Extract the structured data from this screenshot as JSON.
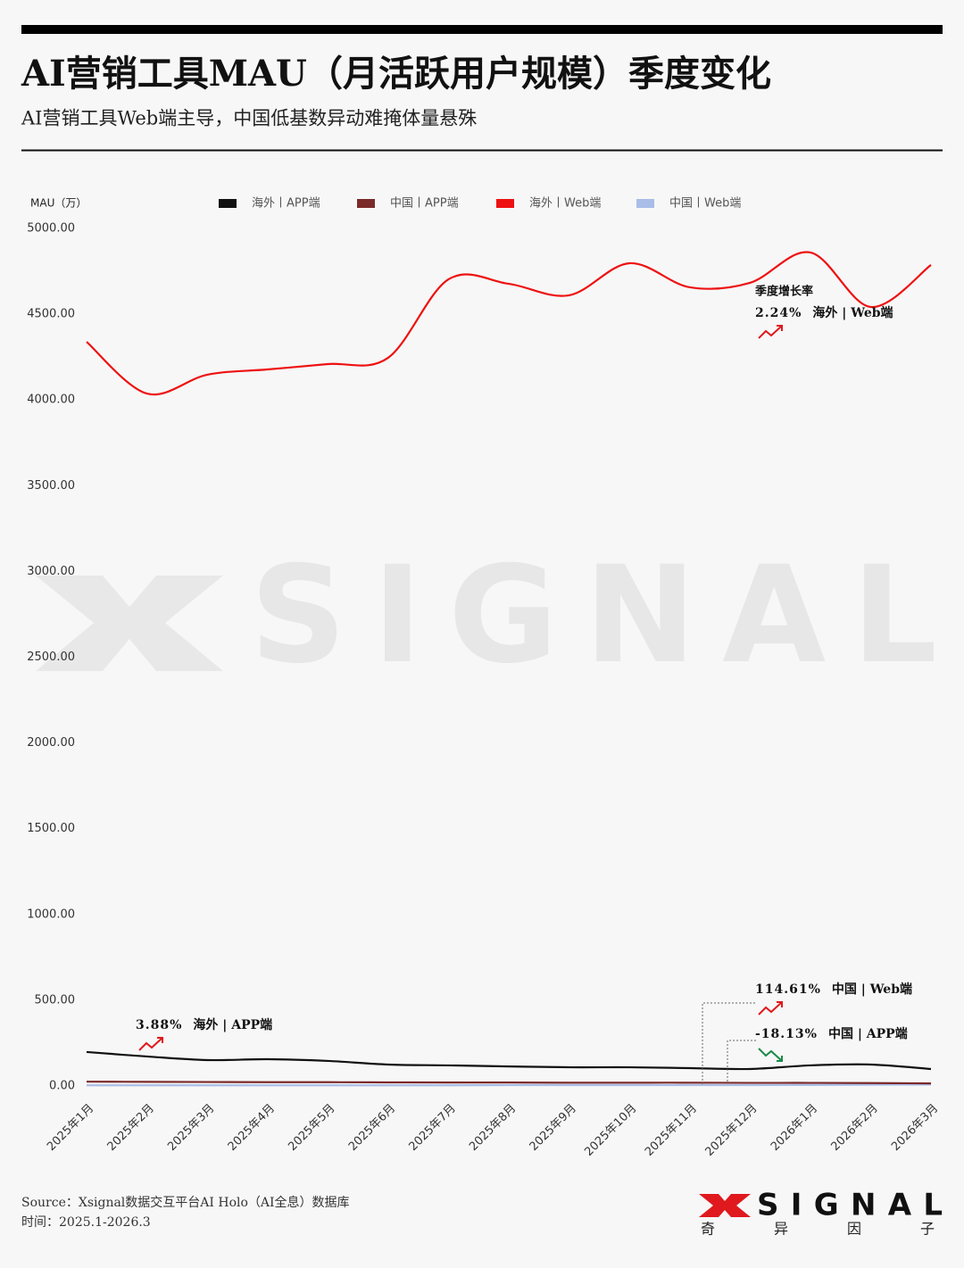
{
  "header": {
    "title": "AI营销工具MAU（月活跃用户规模）季度变化",
    "subtitle": "AI营销工具Web端主导，中国低基数异动难掩体量悬殊"
  },
  "chart_data": {
    "type": "line",
    "y_label": "MAU（万）",
    "categories": [
      "2025年1月",
      "2025年2月",
      "2025年3月",
      "2025年4月",
      "2025年5月",
      "2025年6月",
      "2025年7月",
      "2025年8月",
      "2025年9月",
      "2025年10月",
      "2025年11月",
      "2025年12月",
      "2026年1月",
      "2026年2月",
      "2026年3月"
    ],
    "series": [
      {
        "name": "海外丨APP端",
        "color": "#111111",
        "values": [
          198,
          172,
          151,
          156,
          146,
          125,
          120,
          114,
          109,
          109,
          104,
          99,
          120,
          125,
          99
        ]
      },
      {
        "name": "中国丨APP端",
        "color": "#7b2a2a",
        "values": [
          25,
          24,
          23,
          22,
          22,
          21,
          20,
          20,
          19,
          19,
          19,
          18,
          18,
          17,
          15
        ]
      },
      {
        "name": "海外丨Web端",
        "color": "#ee1111",
        "values": [
          4339,
          4037,
          4147,
          4178,
          4209,
          4246,
          4703,
          4677,
          4610,
          4797,
          4657,
          4683,
          4860,
          4542,
          4787
        ]
      },
      {
        "name": "中国丨Web端",
        "color": "#a9bde8",
        "values": [
          4,
          4,
          4,
          4,
          4,
          4,
          4,
          5,
          5,
          5,
          5,
          5,
          6,
          7,
          8
        ]
      }
    ],
    "ylim": [
      0,
      5000
    ],
    "yticks": [
      {
        "value": 0,
        "label": "0.00"
      },
      {
        "value": 500,
        "label": "500.00"
      },
      {
        "value": 1000,
        "label": "1000.00"
      },
      {
        "value": 1500,
        "label": "1500.00"
      },
      {
        "value": 2000,
        "label": "2000.00"
      },
      {
        "value": 2500,
        "label": "2500.00"
      },
      {
        "value": 3000,
        "label": "3000.00"
      },
      {
        "value": 3500,
        "label": "3500.00"
      },
      {
        "value": 4000,
        "label": "4000.00"
      },
      {
        "value": 4500,
        "label": "4500.00"
      },
      {
        "value": 5000,
        "label": "5000.00"
      }
    ],
    "grid": false,
    "legend_position": "top",
    "annotations": [
      {
        "heading": "季度增长率",
        "rate": "2.24%",
        "series": "海外 | Web端",
        "trend": "up"
      },
      {
        "rate": "3.88%",
        "series": "海外 | APP端",
        "trend": "up"
      },
      {
        "rate": "114.61%",
        "series": "中国 | Web端",
        "trend": "up"
      },
      {
        "rate": "-18.13%",
        "series": "中国 | APP端",
        "trend": "down"
      }
    ]
  },
  "watermark": "SIGNAL",
  "footer": {
    "source": "Source：Xsignal数据交互平台AI Holo（AI全息）数据库",
    "time": "时间：2025.1-2026.3",
    "logo": "SIGNAL",
    "logo_sub": [
      "奇",
      "异",
      "因",
      "子"
    ]
  }
}
